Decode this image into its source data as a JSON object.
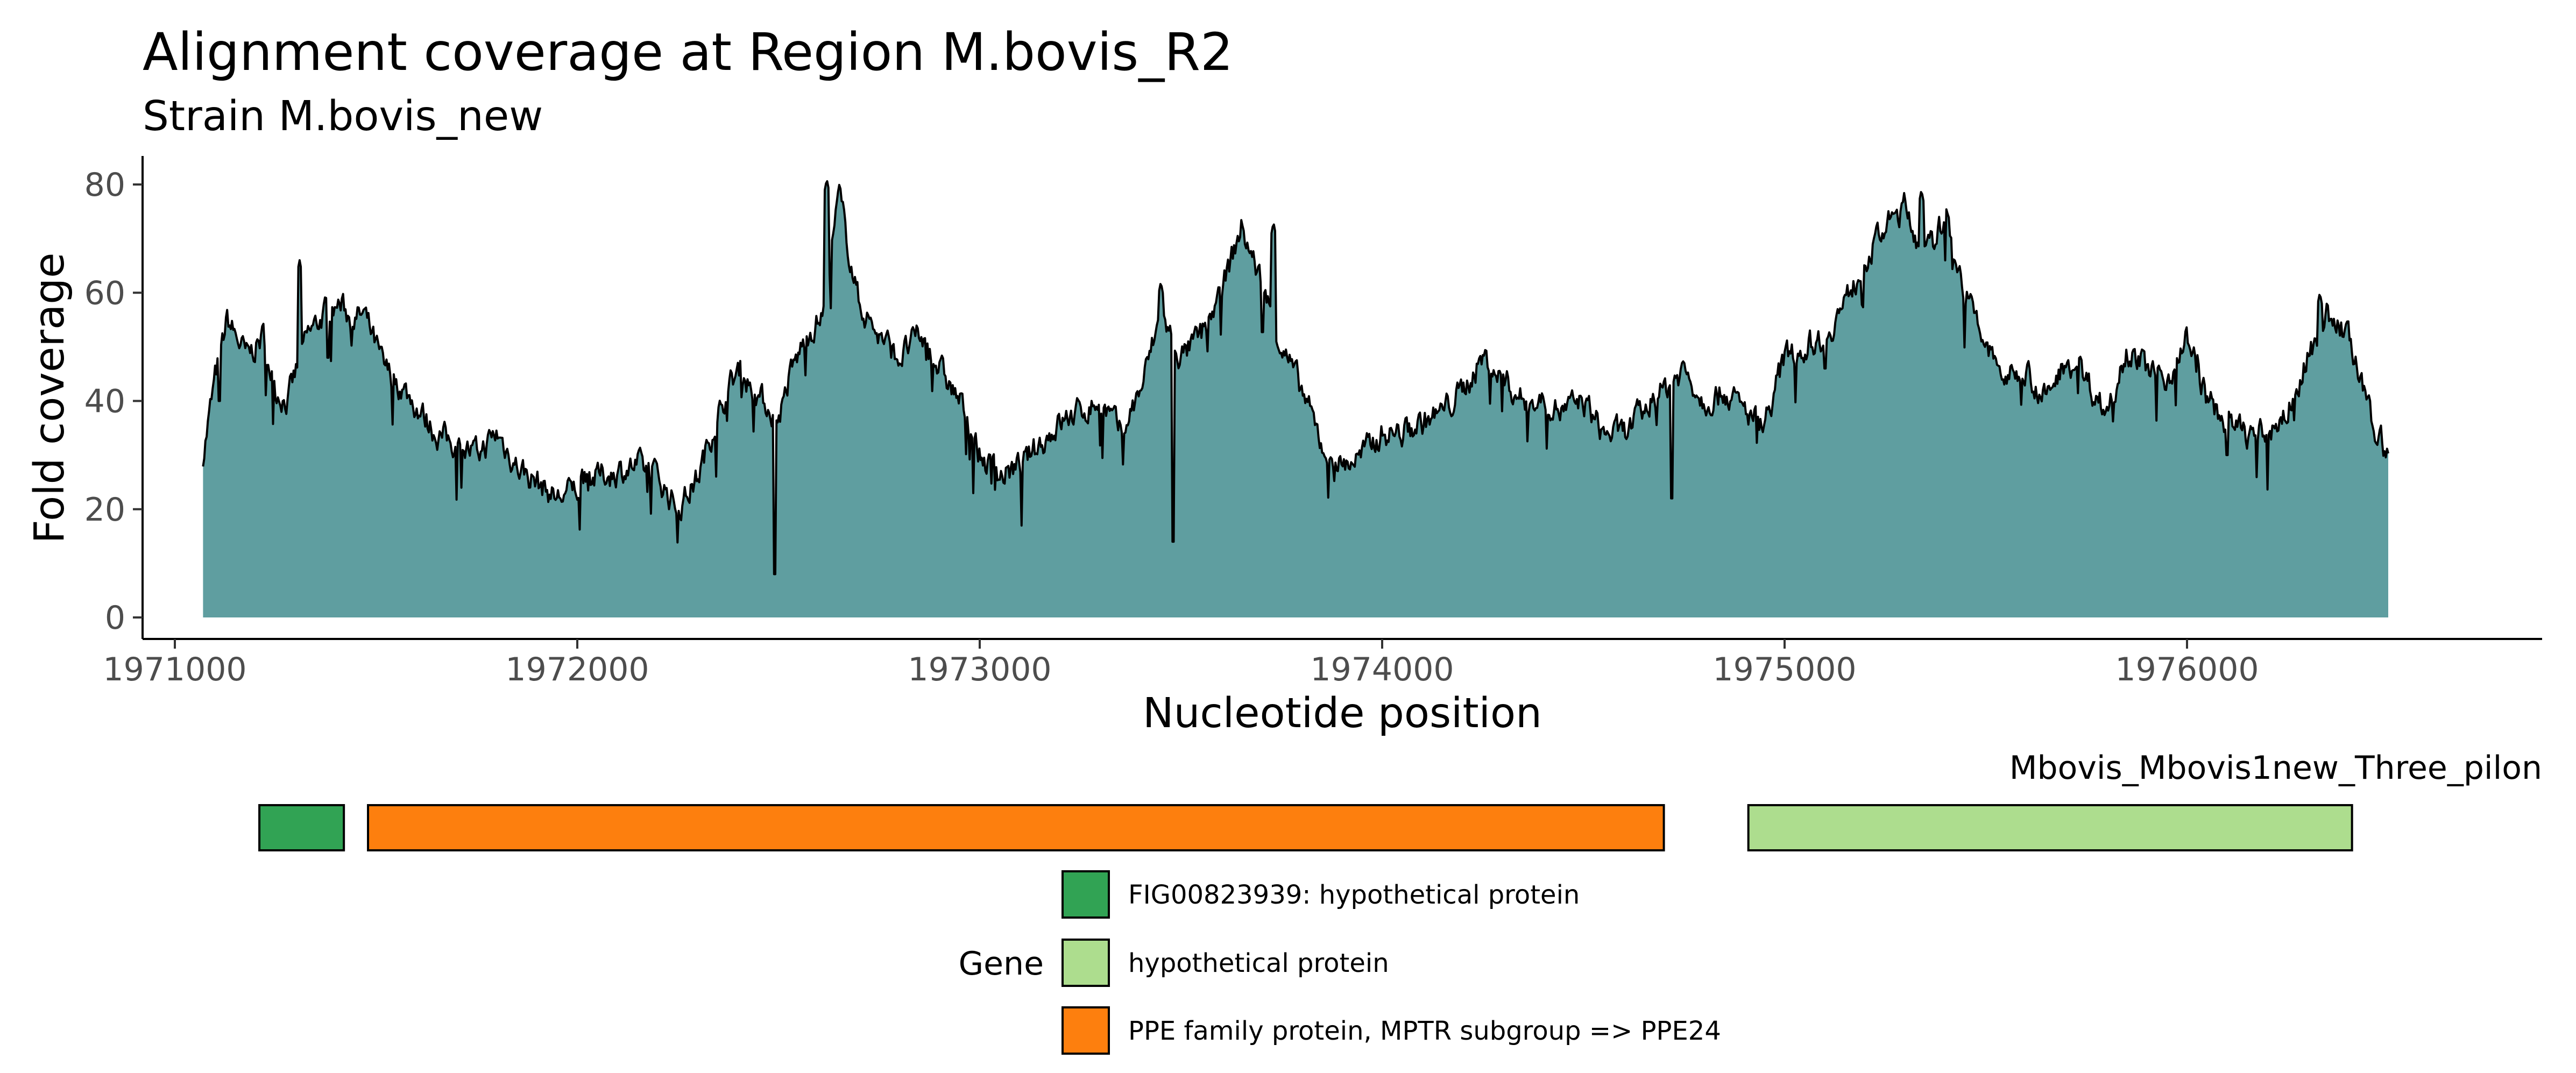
{
  "chart_data": {
    "type": "area",
    "title": "Alignment coverage at Region M.bovis_R2",
    "subtitle": "Strain M.bovis_new",
    "xlabel": "Nucleotide position",
    "ylabel": "Fold coverage",
    "xlim": [
      1970750,
      1976700
    ],
    "ylim": [
      0,
      80
    ],
    "x_ticks": [
      1971000,
      1972000,
      1973000,
      1974000,
      1975000,
      1976000
    ],
    "x_tick_labels": [
      "1971000",
      "1972000",
      "1973000",
      "1974000",
      "1975000",
      "1976000"
    ],
    "y_ticks": [
      0,
      20,
      40,
      60,
      80
    ],
    "y_tick_labels": [
      "0",
      "20",
      "40",
      "60",
      "80"
    ],
    "grid": false,
    "fill_color": "#5f9ea0",
    "line_color": "#000000",
    "coverage": {
      "x": [
        1971070,
        1971100,
        1971130,
        1971180,
        1971220,
        1971250,
        1971280,
        1971300,
        1971330,
        1971370,
        1971410,
        1971440,
        1971470,
        1971520,
        1971570,
        1971610,
        1971650,
        1971700,
        1971750,
        1971800,
        1971850,
        1971900,
        1971950,
        1972000,
        1972050,
        1972100,
        1972150,
        1972200,
        1972250,
        1972300,
        1972350,
        1972400,
        1972460,
        1972500,
        1972530,
        1972570,
        1972610,
        1972650,
        1972700,
        1972750,
        1972800,
        1972850,
        1972900,
        1972950,
        1973000,
        1973050,
        1973100,
        1973150,
        1973200,
        1973250,
        1973300,
        1973350,
        1973400,
        1973450,
        1973500,
        1973550,
        1973600,
        1973650,
        1973700,
        1973750,
        1973800,
        1973850,
        1973900,
        1973950,
        1974000,
        1974050,
        1974100,
        1974150,
        1974200,
        1974250,
        1974300,
        1974350,
        1974400,
        1974450,
        1974500,
        1974550,
        1974600,
        1974650,
        1974700,
        1974750,
        1974800,
        1974850,
        1974900,
        1974950,
        1975000,
        1975050,
        1975100,
        1975150,
        1975200,
        1975250,
        1975300,
        1975350,
        1975400,
        1975450,
        1975500,
        1975550,
        1975600,
        1975650,
        1975700,
        1975750,
        1975800,
        1975850,
        1975900,
        1975950,
        1976000,
        1976050,
        1976100,
        1976150,
        1976200,
        1976250,
        1976300,
        1976350,
        1976400,
        1976450,
        1976500
      ],
      "y": [
        30,
        44,
        55,
        48,
        52,
        42,
        40,
        45,
        52,
        56,
        58,
        55,
        56,
        46,
        42,
        38,
        34,
        32,
        30,
        34,
        28,
        25,
        22,
        24,
        26,
        27,
        28,
        26,
        20,
        26,
        38,
        46,
        40,
        37,
        45,
        52,
        56,
        78,
        58,
        52,
        48,
        52,
        46,
        40,
        30,
        26,
        28,
        32,
        36,
        38,
        40,
        34,
        42,
        56,
        48,
        52,
        60,
        72,
        62,
        50,
        42,
        32,
        28,
        30,
        34,
        34,
        36,
        38,
        42,
        48,
        44,
        40,
        40,
        38,
        40,
        34,
        34,
        38,
        42,
        46,
        40,
        42,
        38,
        36,
        48,
        50,
        52,
        58,
        66,
        72,
        76,
        66,
        74,
        60,
        50,
        44,
        46,
        40,
        48,
        44,
        38,
        50,
        46,
        44,
        52,
        40,
        36,
        34,
        34,
        38,
        48,
        56,
        52,
        38,
        30
      ],
      "dips": [
        {
          "x": 1971110,
          "y": 40
        },
        {
          "x": 1971380,
          "y": 48
        },
        {
          "x": 1972490,
          "y": 8
        },
        {
          "x": 1973480,
          "y": 14
        },
        {
          "x": 1974720,
          "y": 22
        },
        {
          "x": 1975100,
          "y": 46
        },
        {
          "x": 1976100,
          "y": 30
        }
      ],
      "spikes": [
        {
          "x": 1971310,
          "y": 66
        },
        {
          "x": 1972620,
          "y": 81
        },
        {
          "x": 1973450,
          "y": 62
        },
        {
          "x": 1973730,
          "y": 73
        },
        {
          "x": 1975340,
          "y": 79
        },
        {
          "x": 1976330,
          "y": 60
        }
      ]
    },
    "gene_track": {
      "label": "Mbovis_Mbovis1new_Three_pilon",
      "genes": [
        {
          "start": 1971210,
          "end": 1971420,
          "category": 0
        },
        {
          "start": 1971480,
          "end": 1974700,
          "category": 2
        },
        {
          "start": 1974910,
          "end": 1976410,
          "category": 1
        }
      ]
    },
    "legend": {
      "title": "Gene",
      "position": "bottom",
      "items": [
        {
          "label": "FIG00823939: hypothetical protein",
          "color": "#31a354"
        },
        {
          "label": "hypothetical protein",
          "color": "#addd8e"
        },
        {
          "label": "PPE family protein, MPTR subgroup => PPE24",
          "color": "#fd7f0e"
        }
      ]
    }
  }
}
